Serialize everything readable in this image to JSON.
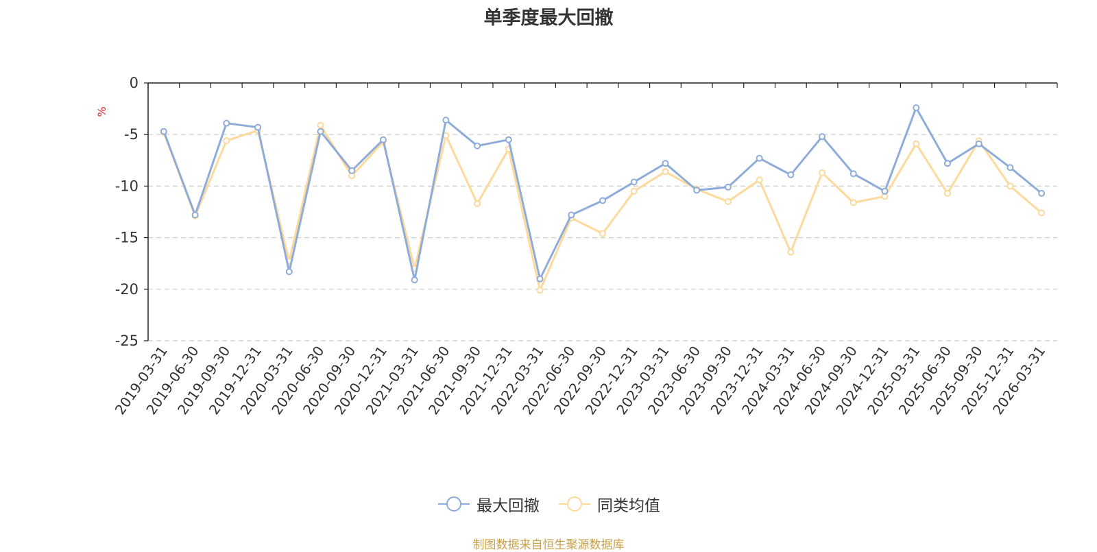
{
  "colors": {
    "series_1": "#8eacd9",
    "series_2": "#fdd99b",
    "axis": "#222222",
    "grid": "#cccccc",
    "unit": "#e02020"
  },
  "chart_data": {
    "type": "line",
    "title": "单季度最大回撤",
    "ylabel": "%",
    "xlabel": "",
    "ylim": [
      -25,
      0
    ],
    "y_ticks": [
      0,
      -5,
      -10,
      -15,
      -20,
      -25
    ],
    "grid": "horizontal-dashed",
    "legend_position": "bottom-center",
    "x": [
      "2019-03-31",
      "2019-06-30",
      "2019-09-30",
      "2019-12-31",
      "2020-03-31",
      "2020-06-30",
      "2020-09-30",
      "2020-12-31",
      "2021-03-31",
      "2021-06-30",
      "2021-09-30",
      "2021-12-31",
      "2022-03-31",
      "2022-06-30",
      "2022-09-30",
      "2022-12-31",
      "2023-03-31",
      "2023-06-30",
      "2023-09-30",
      "2023-12-31",
      "2024-03-31",
      "2024-06-30",
      "2024-09-30",
      "2024-12-31",
      "2025-03-31",
      "2025-06-30",
      "2025-09-30",
      "2025-12-31",
      "2026-03-31"
    ],
    "series": [
      {
        "name": "最大回撤",
        "values": [
          -4.7,
          -12.8,
          -3.9,
          -4.3,
          -18.3,
          -4.7,
          -8.5,
          -5.5,
          -19.1,
          -3.6,
          -6.1,
          -5.5,
          -19.0,
          -12.8,
          -11.4,
          -9.6,
          -7.8,
          -10.4,
          -10.1,
          -7.3,
          -8.9,
          -5.2,
          -8.8,
          -10.5,
          -2.4,
          -7.8,
          -5.9,
          -8.2,
          -10.7
        ]
      },
      {
        "name": "同类均值",
        "values": [
          -4.8,
          -12.9,
          -5.6,
          -4.6,
          -17.3,
          -4.1,
          -9.0,
          -5.7,
          -18.0,
          -5.1,
          -11.7,
          -6.4,
          -20.1,
          -13.1,
          -14.6,
          -10.5,
          -8.6,
          -10.3,
          -11.5,
          -9.4,
          -16.4,
          -8.7,
          -11.6,
          -11.0,
          -5.9,
          -10.7,
          -5.6,
          -10.0,
          -12.6
        ]
      }
    ]
  },
  "footer": {
    "source": "制图数据来自恒生聚源数据库"
  }
}
